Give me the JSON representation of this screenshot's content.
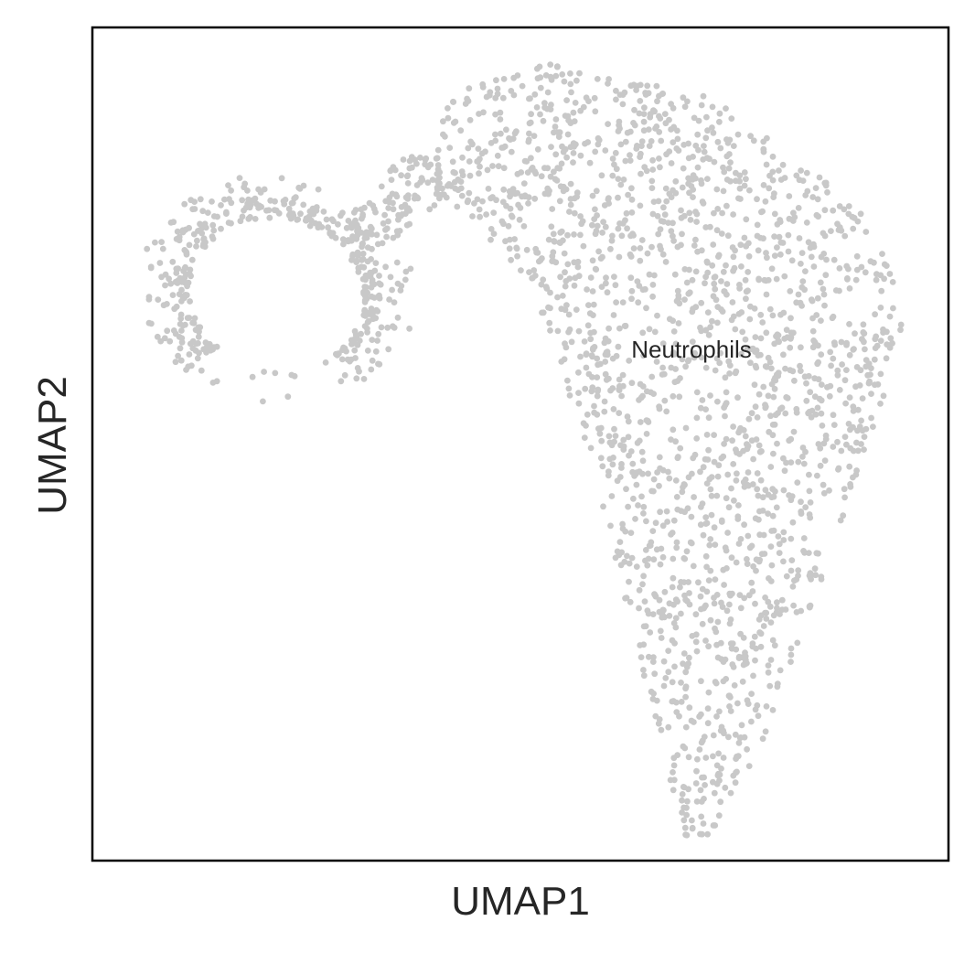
{
  "chart_data": {
    "type": "scatter",
    "xlabel": "UMAP1",
    "ylabel": "UMAP2",
    "xlim": [
      0,
      100
    ],
    "ylim": [
      0,
      100
    ],
    "grid": false,
    "ticks": false,
    "point_color": "#c8c8c8",
    "frame_color": "#000000",
    "text_color": "#262626",
    "cluster_labels": [
      {
        "text": "Neutrophils",
        "x": 70.6,
        "y": 61.6
      }
    ],
    "point_clouds": [
      {
        "cluster": "Neutrophils",
        "n": 1900,
        "seed": 7,
        "envelope_y": [
          1.8,
          95.6
        ],
        "envelope": [
          [
            1.8,
            69.8,
            71.1
          ],
          [
            5,
            68.5,
            73.4
          ],
          [
            9,
            67.7,
            75.6
          ],
          [
            13,
            66.7,
            77.9
          ],
          [
            18,
            65.6,
            79.7
          ],
          [
            23,
            64.2,
            81.5
          ],
          [
            28,
            62.9,
            83.3
          ],
          [
            33,
            61.5,
            84.9
          ],
          [
            38,
            60.6,
            86.8
          ],
          [
            43,
            59.5,
            88.3
          ],
          [
            48,
            57.7,
            90.0
          ],
          [
            53,
            56.4,
            91.6
          ],
          [
            58,
            55.2,
            93.2
          ],
          [
            62,
            54.3,
            94.4
          ],
          [
            65,
            52.4,
            94.8
          ],
          [
            68,
            51.3,
            94.1
          ],
          [
            71,
            49.4,
            93.5
          ],
          [
            74,
            47.0,
            92.5
          ],
          [
            77,
            44.0,
            90.5
          ],
          [
            80,
            41.0,
            88.0
          ],
          [
            83,
            39.5,
            84.0
          ],
          [
            86,
            40.5,
            80.0
          ],
          [
            89,
            40.0,
            76.0
          ],
          [
            92,
            42.0,
            72.0
          ],
          [
            94,
            45.0,
            60.0
          ],
          [
            95.6,
            53.4,
            54.2
          ]
        ]
      },
      {
        "cluster": "Neutrophils",
        "n": 110,
        "seed": 11,
        "envelope_y": [
          74.5,
          84.5
        ],
        "envelope": [
          [
            74.5,
            30.0,
            35.0
          ],
          [
            77,
            29.0,
            38.0
          ],
          [
            79.5,
            33.0,
            42.0
          ],
          [
            82,
            34.0,
            43.0
          ],
          [
            84.5,
            36.0,
            42.0
          ]
        ]
      },
      {
        "cluster": "Neutrophils",
        "n": 520,
        "seed": 23,
        "shape": "ring",
        "center": [
          21.5,
          68.0
        ],
        "radii": [
          16.5,
          14.5
        ],
        "thickness": 0.38,
        "rotation": -0.25,
        "gap": [
          4.2,
          5.6
        ]
      }
    ]
  }
}
